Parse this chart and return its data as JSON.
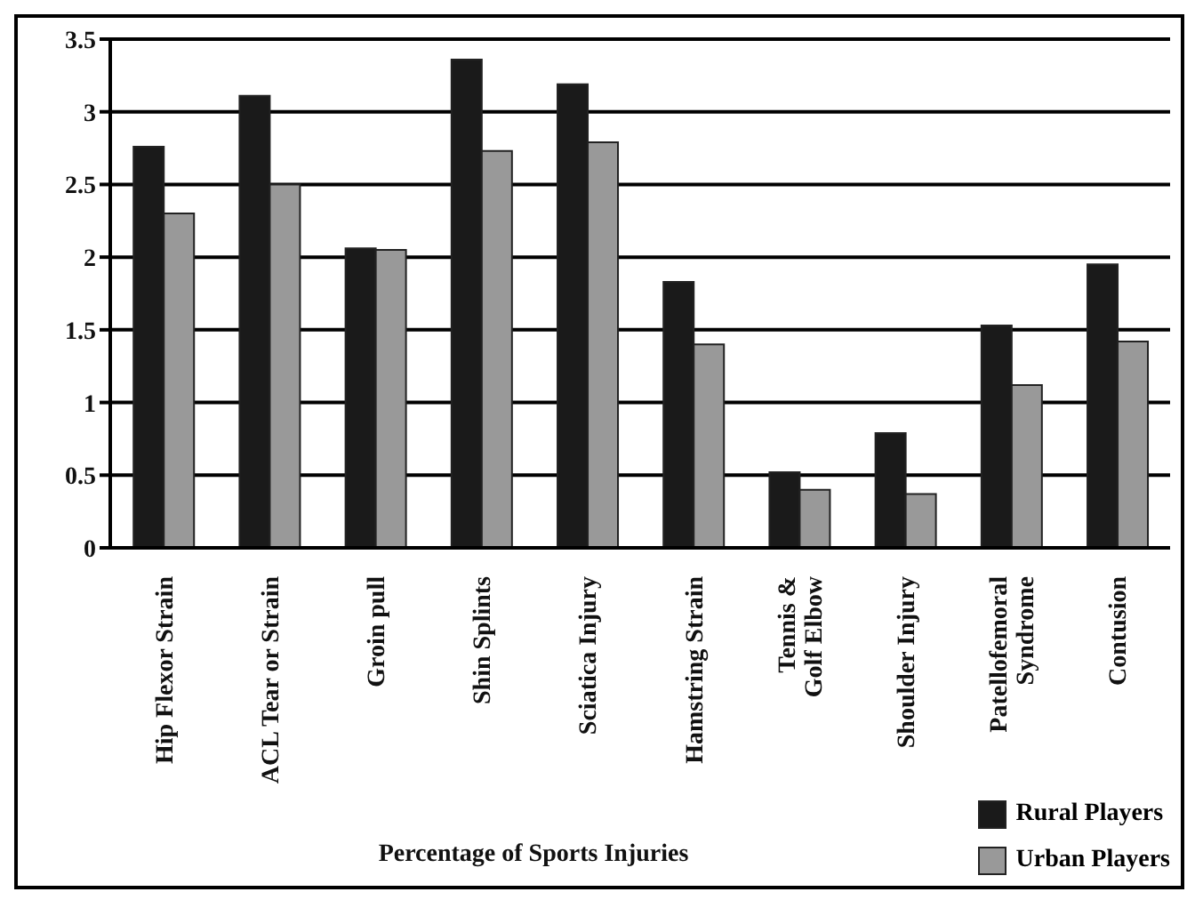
{
  "chart_data": {
    "type": "bar",
    "xlabel": "Percentage of Sports Injuries",
    "categories": [
      "Hip Flexor Strain",
      "ACL Tear or Strain",
      "Groin pull",
      "Shin Splints",
      "Sciatica Injury",
      "Hamstring Strain",
      "Tennis &\nGolf Elbow",
      "Shoulder Injury",
      "Patellofemoral\nSyndrome",
      "Contusion"
    ],
    "series": [
      {
        "name": "Rural Players",
        "color": "#1a1a1a",
        "values": [
          2.76,
          3.11,
          2.06,
          3.36,
          3.19,
          1.83,
          0.52,
          0.79,
          1.53,
          1.95
        ]
      },
      {
        "name": "Urban Players",
        "color": "#999999",
        "values": [
          2.3,
          2.5,
          2.05,
          2.73,
          2.79,
          1.4,
          0.4,
          0.37,
          1.12,
          1.42
        ]
      }
    ],
    "ylim": [
      0,
      3.5
    ],
    "yticks": [
      0,
      0.5,
      1,
      1.5,
      2,
      2.5,
      3,
      3.5
    ],
    "grid": "y",
    "legend": "bottom right"
  }
}
